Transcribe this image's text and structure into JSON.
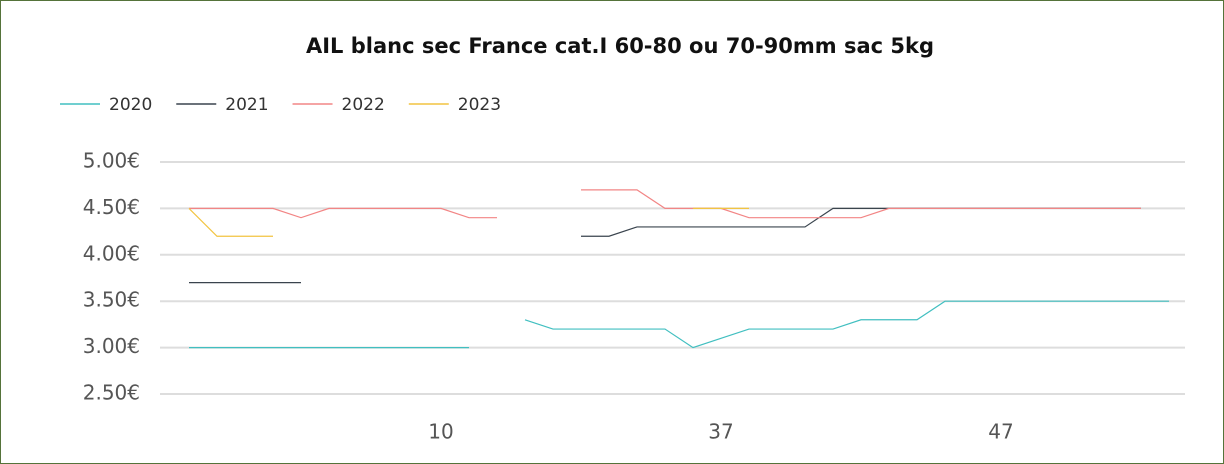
{
  "chart_data": {
    "type": "line",
    "title": "AIL blanc sec France cat.I 60-80 ou 70-90mm sac 5kg",
    "categories": [
      null,
      null,
      null,
      null,
      null,
      null,
      null,
      null,
      null,
      "10",
      null,
      null,
      null,
      null,
      null,
      null,
      null,
      null,
      null,
      "37",
      null,
      null,
      null,
      null,
      null,
      null,
      null,
      null,
      null,
      "47",
      null,
      null,
      null,
      null,
      null,
      null
    ],
    "series": [
      {
        "name": "2020",
        "color": "#41bfc0",
        "values": [
          3,
          3,
          3,
          3,
          3,
          3,
          3,
          3,
          3,
          3,
          3,
          null,
          3.3,
          3.2,
          3.2,
          3.2,
          3.2,
          3.2,
          3.0,
          3.1,
          3.2,
          3.2,
          3.2,
          3.2,
          3.3,
          3.3,
          3.3,
          3.5,
          3.5,
          3.5,
          3.5,
          3.5,
          3.5,
          3.5,
          3.5,
          3.5
        ]
      },
      {
        "name": "2021",
        "color": "#3a444e",
        "values": [
          3.7,
          3.7,
          3.7,
          3.7,
          3.7,
          null,
          null,
          null,
          null,
          null,
          null,
          null,
          null,
          null,
          4.2,
          4.2,
          4.3,
          4.3,
          4.3,
          4.3,
          4.3,
          4.3,
          4.3,
          4.5,
          4.5,
          4.5,
          4.5,
          4.5,
          4.5,
          4.5,
          4.5,
          4.5,
          4.5,
          4.5,
          4.5,
          null
        ]
      },
      {
        "name": "2022",
        "color": "#f28585",
        "values": [
          4.5,
          4.5,
          4.5,
          4.5,
          4.4,
          4.5,
          4.5,
          4.5,
          4.5,
          4.5,
          4.4,
          4.4,
          null,
          null,
          4.7,
          4.7,
          4.7,
          4.5,
          4.5,
          4.5,
          4.4,
          4.4,
          4.4,
          4.4,
          4.4,
          4.5,
          4.5,
          4.5,
          4.5,
          4.5,
          4.5,
          4.5,
          4.5,
          4.5,
          4.5,
          null
        ]
      },
      {
        "name": "2023",
        "color": "#f2c441",
        "values": [
          4.5,
          4.2,
          4.2,
          4.2,
          null,
          null,
          null,
          null,
          null,
          null,
          null,
          null,
          null,
          null,
          null,
          null,
          null,
          null,
          4.5,
          4.5,
          4.5,
          null,
          null,
          null,
          null,
          null,
          null,
          null,
          null,
          null,
          null,
          null,
          null,
          null,
          null,
          null
        ]
      }
    ],
    "ylim": [
      2.5,
      5
    ],
    "yticks": [
      {
        "value": 2.5,
        "label": "2.50€"
      },
      {
        "value": 3,
        "label": "3.00€"
      },
      {
        "value": 3.5,
        "label": "3.50€"
      },
      {
        "value": 4,
        "label": "4.00€"
      },
      {
        "value": 4.5,
        "label": "4.50€"
      },
      {
        "value": 5,
        "label": "5.00€"
      }
    ],
    "grid": true,
    "legend": "top-left"
  }
}
